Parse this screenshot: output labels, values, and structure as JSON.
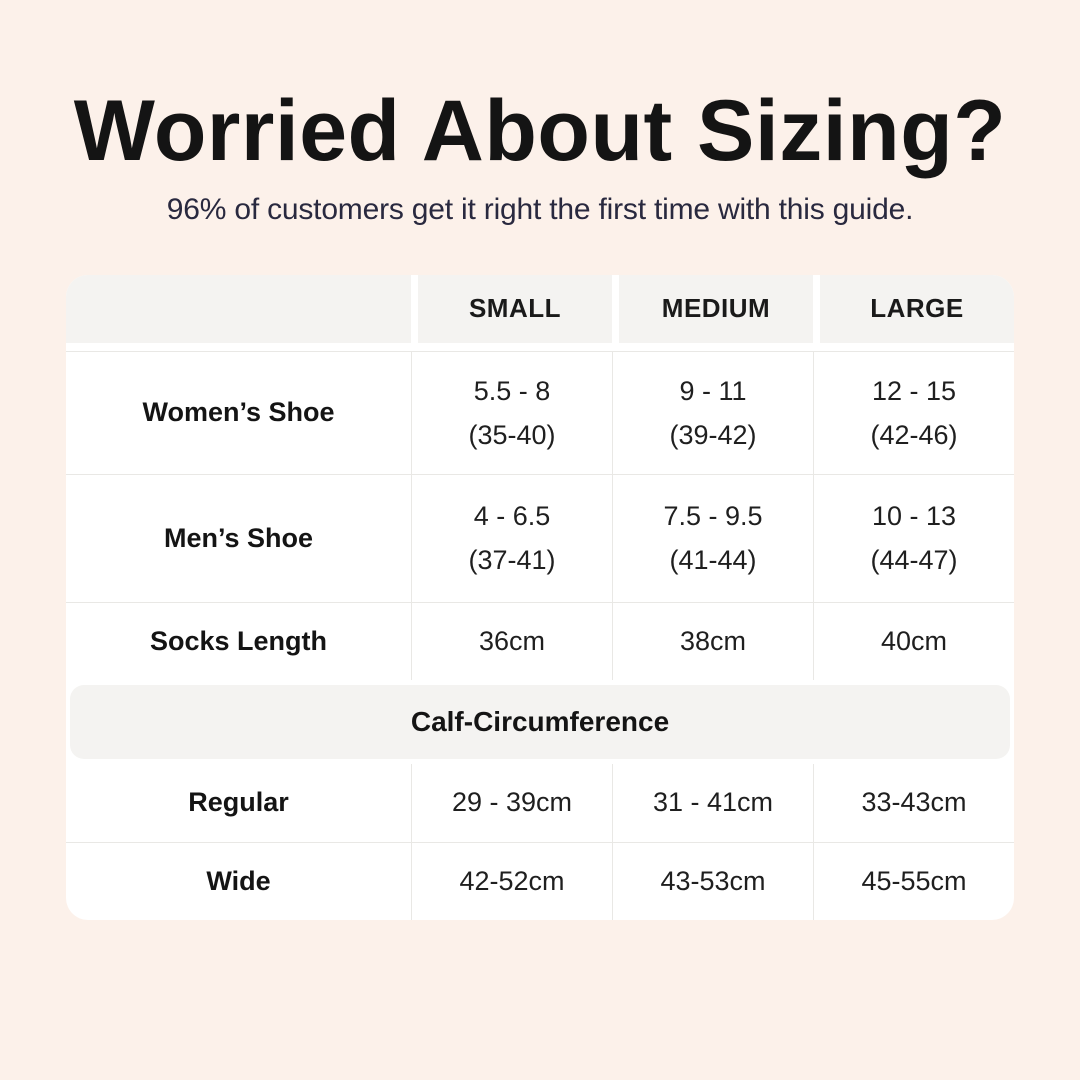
{
  "theme": {
    "background": "#FCF1EA",
    "card_background": "#FFFFFF",
    "header_gray": "#F4F3F1",
    "divider": "#E9E8E5",
    "title_color": "#141414",
    "subtitle_color": "#29293F"
  },
  "header": {
    "title": "Worried About Sizing?",
    "subtitle": "96% of customers get it right the first time with this guide."
  },
  "table": {
    "columns": [
      "",
      "SMALL",
      "MEDIUM",
      "LARGE"
    ],
    "size_rows": [
      {
        "label": "Women’s Shoe",
        "cells": [
          {
            "l1": "5.5 - 8",
            "l2": "(35-40)"
          },
          {
            "l1": "9 - 11",
            "l2": "(39-42)"
          },
          {
            "l1": "12 - 15",
            "l2": "(42-46)"
          }
        ]
      },
      {
        "label": "Men’s Shoe",
        "cells": [
          {
            "l1": "4 - 6.5",
            "l2": "(37-41)"
          },
          {
            "l1": "7.5 - 9.5",
            "l2": "(41-44)"
          },
          {
            "l1": "10 - 13",
            "l2": "(44-47)"
          }
        ]
      },
      {
        "label": "Socks Length",
        "cells": [
          {
            "l1": "36cm"
          },
          {
            "l1": "38cm"
          },
          {
            "l1": "40cm"
          }
        ]
      }
    ],
    "section_header": "Calf-Circumference",
    "calf_rows": [
      {
        "label": "Regular",
        "cells": [
          {
            "l1": "29 - 39cm"
          },
          {
            "l1": "31 - 41cm"
          },
          {
            "l1": "33-43cm"
          }
        ]
      },
      {
        "label": "Wide",
        "cells": [
          {
            "l1": "42-52cm"
          },
          {
            "l1": "43-53cm"
          },
          {
            "l1": "45-55cm"
          }
        ]
      }
    ]
  },
  "chart_data": {
    "type": "table",
    "title": "Worried About Sizing?",
    "subtitle": "96% of customers get it right the first time with this guide.",
    "columns": [
      "",
      "SMALL",
      "MEDIUM",
      "LARGE"
    ],
    "rows": [
      [
        "Women’s Shoe",
        "5.5 - 8 (35-40)",
        "9 - 11 (39-42)",
        "12 - 15 (42-46)"
      ],
      [
        "Men’s Shoe",
        "4 - 6.5 (37-41)",
        "7.5 - 9.5 (41-44)",
        "10 - 13 (44-47)"
      ],
      [
        "Socks Length",
        "36cm",
        "38cm",
        "40cm"
      ],
      [
        "Calf-Circumference",
        "",
        "",
        ""
      ],
      [
        "Regular",
        "29 - 39cm",
        "31 - 41cm",
        "33-43cm"
      ],
      [
        "Wide",
        "42-52cm",
        "43-53cm",
        "45-55cm"
      ]
    ],
    "layout_hints": {
      "section_row_index": 3,
      "header_style": "gray-band",
      "grid": "light-hairlines"
    }
  }
}
